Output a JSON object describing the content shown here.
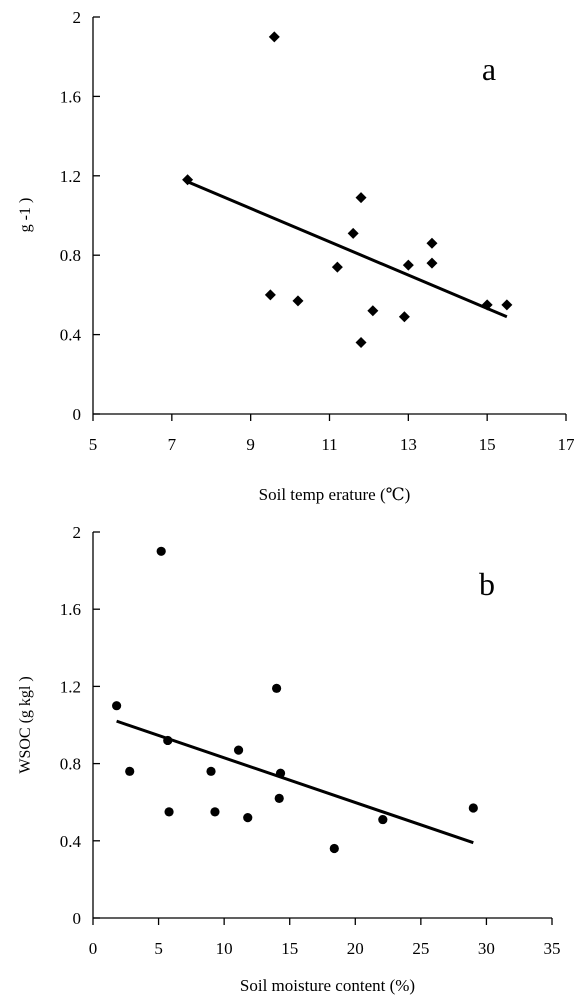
{
  "chart_data": [
    {
      "type": "scatter",
      "panel_label": "a",
      "title": "",
      "xlabel": "Soil temp erature (℃)",
      "ylabel": "g -1 )",
      "xlim": [
        5,
        17
      ],
      "ylim": [
        0,
        2
      ],
      "x_ticks": [
        "5",
        "7",
        "9",
        "11",
        "13",
        "15",
        "17"
      ],
      "y_ticks": [
        "0",
        "0.4",
        "0.8",
        "1.2",
        "1.6",
        "2"
      ],
      "grid": false,
      "marker": "diamond",
      "points": [
        {
          "x": 7.4,
          "y": 1.18
        },
        {
          "x": 9.6,
          "y": 1.9
        },
        {
          "x": 9.5,
          "y": 0.6
        },
        {
          "x": 10.2,
          "y": 0.57
        },
        {
          "x": 11.2,
          "y": 0.74
        },
        {
          "x": 11.6,
          "y": 0.91
        },
        {
          "x": 11.8,
          "y": 1.09
        },
        {
          "x": 11.8,
          "y": 0.36
        },
        {
          "x": 12.1,
          "y": 0.52
        },
        {
          "x": 12.9,
          "y": 0.49
        },
        {
          "x": 13.0,
          "y": 0.75
        },
        {
          "x": 13.6,
          "y": 0.86
        },
        {
          "x": 13.6,
          "y": 0.76
        },
        {
          "x": 15.0,
          "y": 0.55
        },
        {
          "x": 15.5,
          "y": 0.55
        }
      ],
      "trendline": {
        "x": [
          7.4,
          15.5
        ],
        "y": [
          1.17,
          0.49
        ]
      }
    },
    {
      "type": "scatter",
      "panel_label": "b",
      "title": "",
      "xlabel": "Soil moisture content (%)",
      "ylabel": "WSOC (g kgl )",
      "xlim": [
        0,
        35
      ],
      "ylim": [
        0,
        2
      ],
      "x_ticks": [
        "0",
        "5",
        "10",
        "15",
        "20",
        "25",
        "30",
        "35"
      ],
      "y_ticks": [
        "0",
        "0.4",
        "0.8",
        "1.2",
        "1.6",
        "2"
      ],
      "grid": false,
      "marker": "circle",
      "points": [
        {
          "x": 1.8,
          "y": 1.1
        },
        {
          "x": 2.8,
          "y": 0.76
        },
        {
          "x": 5.2,
          "y": 1.9
        },
        {
          "x": 5.7,
          "y": 0.92
        },
        {
          "x": 5.8,
          "y": 0.55
        },
        {
          "x": 9.0,
          "y": 0.76
        },
        {
          "x": 9.3,
          "y": 0.55
        },
        {
          "x": 11.1,
          "y": 0.87
        },
        {
          "x": 11.8,
          "y": 0.52
        },
        {
          "x": 14.0,
          "y": 1.19
        },
        {
          "x": 14.3,
          "y": 0.75
        },
        {
          "x": 14.2,
          "y": 0.62
        },
        {
          "x": 18.4,
          "y": 0.36
        },
        {
          "x": 22.1,
          "y": 0.51
        },
        {
          "x": 29.0,
          "y": 0.57
        }
      ],
      "trendline": {
        "x": [
          1.8,
          29.0
        ],
        "y": [
          1.02,
          0.39
        ]
      }
    }
  ]
}
